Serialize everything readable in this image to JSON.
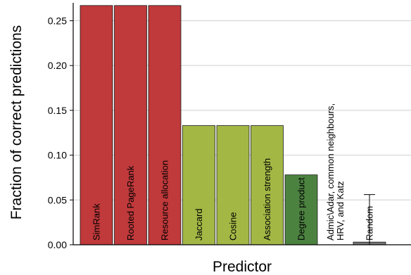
{
  "chart_data": {
    "type": "bar",
    "xlabel": "Predictor",
    "ylabel": "Fraction of correct predictions",
    "ylim": [
      0,
      0.27
    ],
    "yticks": [
      "0.00",
      "0.05",
      "0.10",
      "0.15",
      "0.20",
      "0.25"
    ],
    "grid": "horizontal",
    "categories": [
      "SimRank",
      "Rooted PageRank",
      "Resource allocation",
      "Jaccard",
      "Cosine",
      "Association strength",
      "Degree product",
      "Admic\\Adar, common neighbours, HRV, and Katz",
      "Random"
    ],
    "label_lines": [
      [
        "SimRank"
      ],
      [
        "Rooted PageRank"
      ],
      [
        "Resource allocation"
      ],
      [
        "Jaccard"
      ],
      [
        "Cosine"
      ],
      [
        "Association strength"
      ],
      [
        "Degree product"
      ],
      [
        "Admic\\Adar, common neighbours,",
        "HRV, and Katz"
      ],
      [
        "Random"
      ]
    ],
    "values": [
      0.267,
      0.267,
      0.267,
      0.133,
      0.133,
      0.133,
      0.078,
      0.0,
      0.003
    ],
    "colors": [
      "#c0393b",
      "#c0393b",
      "#c0393b",
      "#a3b745",
      "#a3b745",
      "#a3b745",
      "#4c8240",
      "#ffffff",
      "#777777"
    ],
    "error_bar": {
      "category": "Random",
      "low": 0.0,
      "high": 0.056
    }
  }
}
